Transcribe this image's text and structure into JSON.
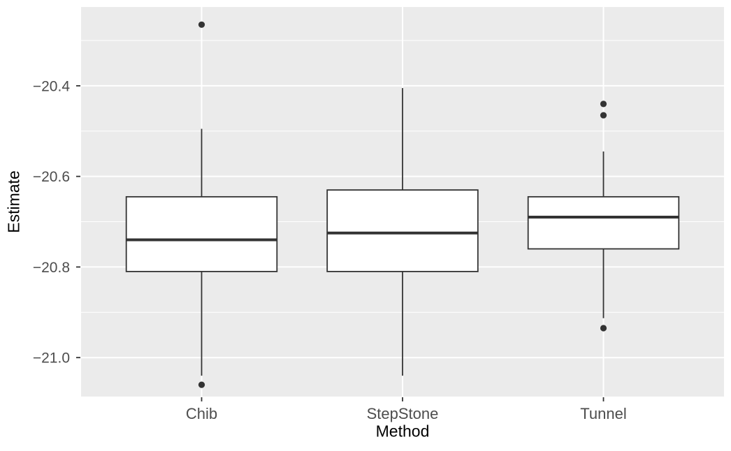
{
  "figure": {
    "kind": "ggplot-style boxplot",
    "title": ""
  },
  "colors": {
    "page_background": "#FFFFFF",
    "panel_background": "#EBEBEB",
    "gridline": "#FFFFFF",
    "box_stroke": "#333333",
    "box_fill": "#FFFFFF",
    "median_stroke": "#333333",
    "whisker_stroke": "#333333",
    "outlier_fill": "#333333",
    "axis_tick": "#333333",
    "tick_label": "#4D4D4D",
    "axis_title": "#000000"
  },
  "chart_data": {
    "type": "boxplot",
    "title": "",
    "xlabel": "Method",
    "ylabel": "Estimate",
    "categories": [
      "Chib",
      "StepStone",
      "Tunnel"
    ],
    "series": [
      {
        "name": "Chib",
        "whisker_low": -21.04,
        "q1": -20.81,
        "median": -20.74,
        "q3": -20.645,
        "whisker_high": -20.495,
        "outliers": [
          -20.265,
          -21.06
        ]
      },
      {
        "name": "StepStone",
        "whisker_low": -21.04,
        "q1": -20.81,
        "median": -20.725,
        "q3": -20.63,
        "whisker_high": -20.405,
        "outliers": []
      },
      {
        "name": "Tunnel",
        "whisker_low": -20.913,
        "q1": -20.76,
        "median": -20.69,
        "q3": -20.645,
        "whisker_high": -20.545,
        "outliers": [
          -20.44,
          -20.465,
          -20.935
        ]
      }
    ],
    "y_axis": {
      "ticks": [
        -20.4,
        -20.6,
        -20.8,
        -21.0
      ],
      "tick_labels": [
        "−20.4",
        "−20.6",
        "−20.8",
        "−21.0"
      ],
      "minor_gridlines": [
        -20.3,
        -20.5,
        -20.7,
        -20.9
      ],
      "lim": [
        -21.086,
        -20.226
      ]
    },
    "grid": {
      "horizontal": "major+minor",
      "vertical": "major-at-categories"
    },
    "legend": false
  }
}
